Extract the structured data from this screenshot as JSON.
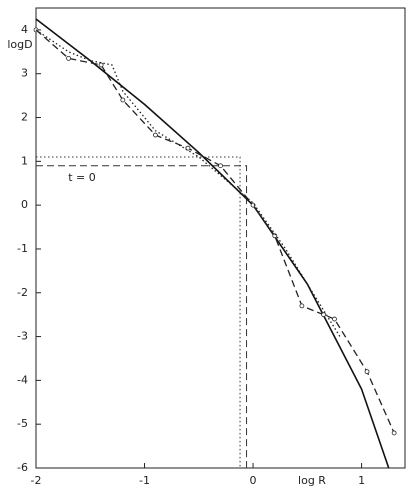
{
  "chart_data": {
    "type": "line",
    "x_label": "log R",
    "y_label": "logD",
    "annotation": "t = 0",
    "xlim": [
      -2,
      1.4
    ],
    "ylim": [
      -6,
      4.5
    ],
    "xticks": [
      -2,
      -1,
      0,
      1
    ],
    "yticks": [
      -6,
      -5,
      -4,
      -3,
      -2,
      -1,
      0,
      1,
      2,
      3,
      4
    ],
    "grid": false,
    "series": [
      {
        "color": "#111111",
        "style": "solid",
        "markers": false,
        "x": [
          -2,
          -1.5,
          -1,
          -0.5,
          0,
          0.5,
          1,
          1.25
        ],
        "values": [
          4.25,
          3.3,
          2.3,
          1.2,
          0,
          -1.8,
          -4.2,
          -6
        ]
      },
      {
        "color": "#222222",
        "style": "dashed",
        "markers": true,
        "x": [
          -2,
          -1.7,
          -1.4,
          -1.2,
          -0.9,
          -0.6,
          -0.3,
          0,
          0.2,
          0.45,
          0.65,
          0.75,
          1.05,
          1.3
        ],
        "values": [
          4.0,
          3.35,
          3.2,
          2.4,
          1.6,
          1.3,
          0.9,
          0,
          -0.7,
          -2.3,
          -2.5,
          -2.6,
          -3.8,
          -5.2
        ]
      },
      {
        "color": "#222222",
        "style": "dotted",
        "markers": false,
        "x": [
          -2,
          -1.7,
          -1.5,
          -1.3,
          -1.2,
          -0.9,
          -0.5,
          0,
          0.3,
          0.5,
          0.7,
          0.8
        ],
        "values": [
          4.0,
          3.5,
          3.3,
          3.2,
          2.6,
          1.7,
          1.1,
          0.05,
          -1.0,
          -1.8,
          -2.6,
          -3.0
        ]
      }
    ],
    "ref_lines": [
      {
        "y": 1.1,
        "x": -0.12,
        "style": "dotted"
      },
      {
        "y": 0.9,
        "x": -0.06,
        "style": "dashed"
      }
    ]
  }
}
